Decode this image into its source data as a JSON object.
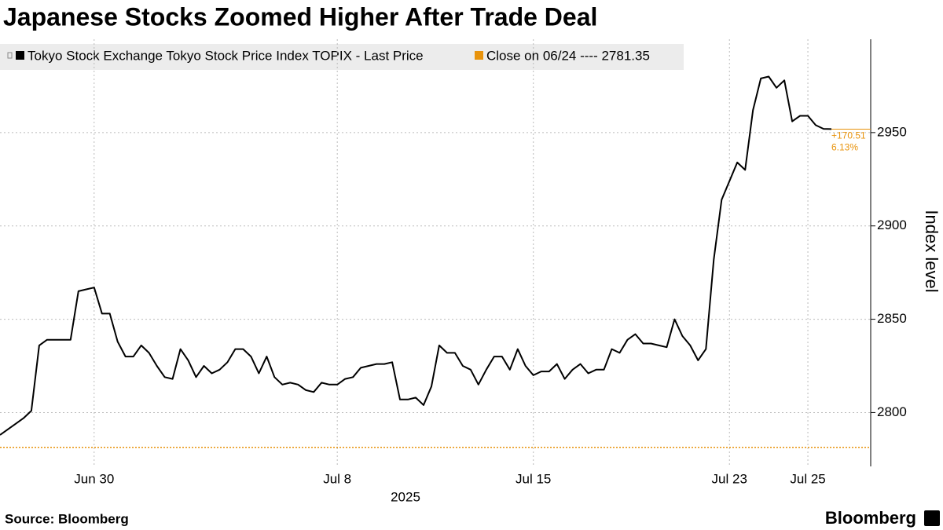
{
  "chart_data": {
    "type": "line",
    "title": "Japanese Stocks Zoomed Higher After Trade Deal",
    "source": "Source: Bloomberg",
    "brand": "Bloomberg",
    "y_label": "Index level",
    "x_label": "2025",
    "ylim": [
      2772,
      3000
    ],
    "yticks": [
      2800,
      2850,
      2900,
      2950
    ],
    "grid": true,
    "categories": [
      null,
      null,
      null,
      null,
      null,
      null,
      null,
      null,
      null,
      null,
      null,
      null,
      "Jun 30",
      null,
      null,
      null,
      null,
      null,
      null,
      null,
      null,
      null,
      null,
      null,
      null,
      null,
      null,
      null,
      null,
      null,
      null,
      null,
      null,
      null,
      null,
      null,
      null,
      null,
      null,
      null,
      null,
      null,
      null,
      "Jul 8",
      null,
      null,
      null,
      null,
      null,
      null,
      null,
      null,
      null,
      null,
      null,
      null,
      null,
      null,
      null,
      null,
      null,
      null,
      null,
      null,
      null,
      null,
      null,
      null,
      "Jul 15",
      null,
      null,
      null,
      null,
      null,
      null,
      null,
      null,
      null,
      null,
      null,
      null,
      null,
      null,
      null,
      null,
      null,
      null,
      null,
      null,
      null,
      null,
      null,
      null,
      "Jul 23",
      null,
      null,
      null,
      null,
      null,
      null,
      null,
      null,
      null,
      "Jul 25",
      null,
      null,
      null
    ],
    "series": [
      {
        "name": "Tokyo Stock Exchange Tokyo Stock Price Index TOPIX - Last Price",
        "color": "#000000",
        "values": [
          2788,
          2791,
          2794,
          2797,
          2801,
          2836,
          2839,
          2839,
          2839,
          2839,
          2865,
          2866,
          2867,
          2853,
          2853,
          2838,
          2830,
          2830,
          2836,
          2832,
          2825,
          2819,
          2818,
          2834,
          2828,
          2819,
          2825,
          2821,
          2823,
          2827,
          2834,
          2834,
          2830,
          2821,
          2830,
          2819,
          2815,
          2816,
          2815,
          2812,
          2811,
          2816,
          2815,
          2815,
          2818,
          2819,
          2824,
          2825,
          2826,
          2826,
          2827,
          2807,
          2807,
          2808,
          2804,
          2814,
          2836,
          2832,
          2832,
          2825,
          2823,
          2815,
          2823,
          2830,
          2830,
          2823,
          2834,
          2825,
          2820,
          2822,
          2822,
          2826,
          2818,
          2823,
          2826,
          2821,
          2823,
          2823,
          2834,
          2832,
          2839,
          2842,
          2837,
          2837,
          2836,
          2835,
          2850,
          2841,
          2836,
          2828,
          2834,
          2882,
          2914,
          2924,
          2934,
          2930,
          2962,
          2979,
          2980,
          2974,
          2978,
          2956,
          2959,
          2959,
          2954,
          2952,
          2951.86
        ]
      }
    ],
    "reference": {
      "label": "Close on 06/24 ---- 2781.35",
      "value": 2781.35,
      "color": "#e8930c"
    },
    "annotations": [
      "+170.51",
      "6.13%"
    ]
  }
}
